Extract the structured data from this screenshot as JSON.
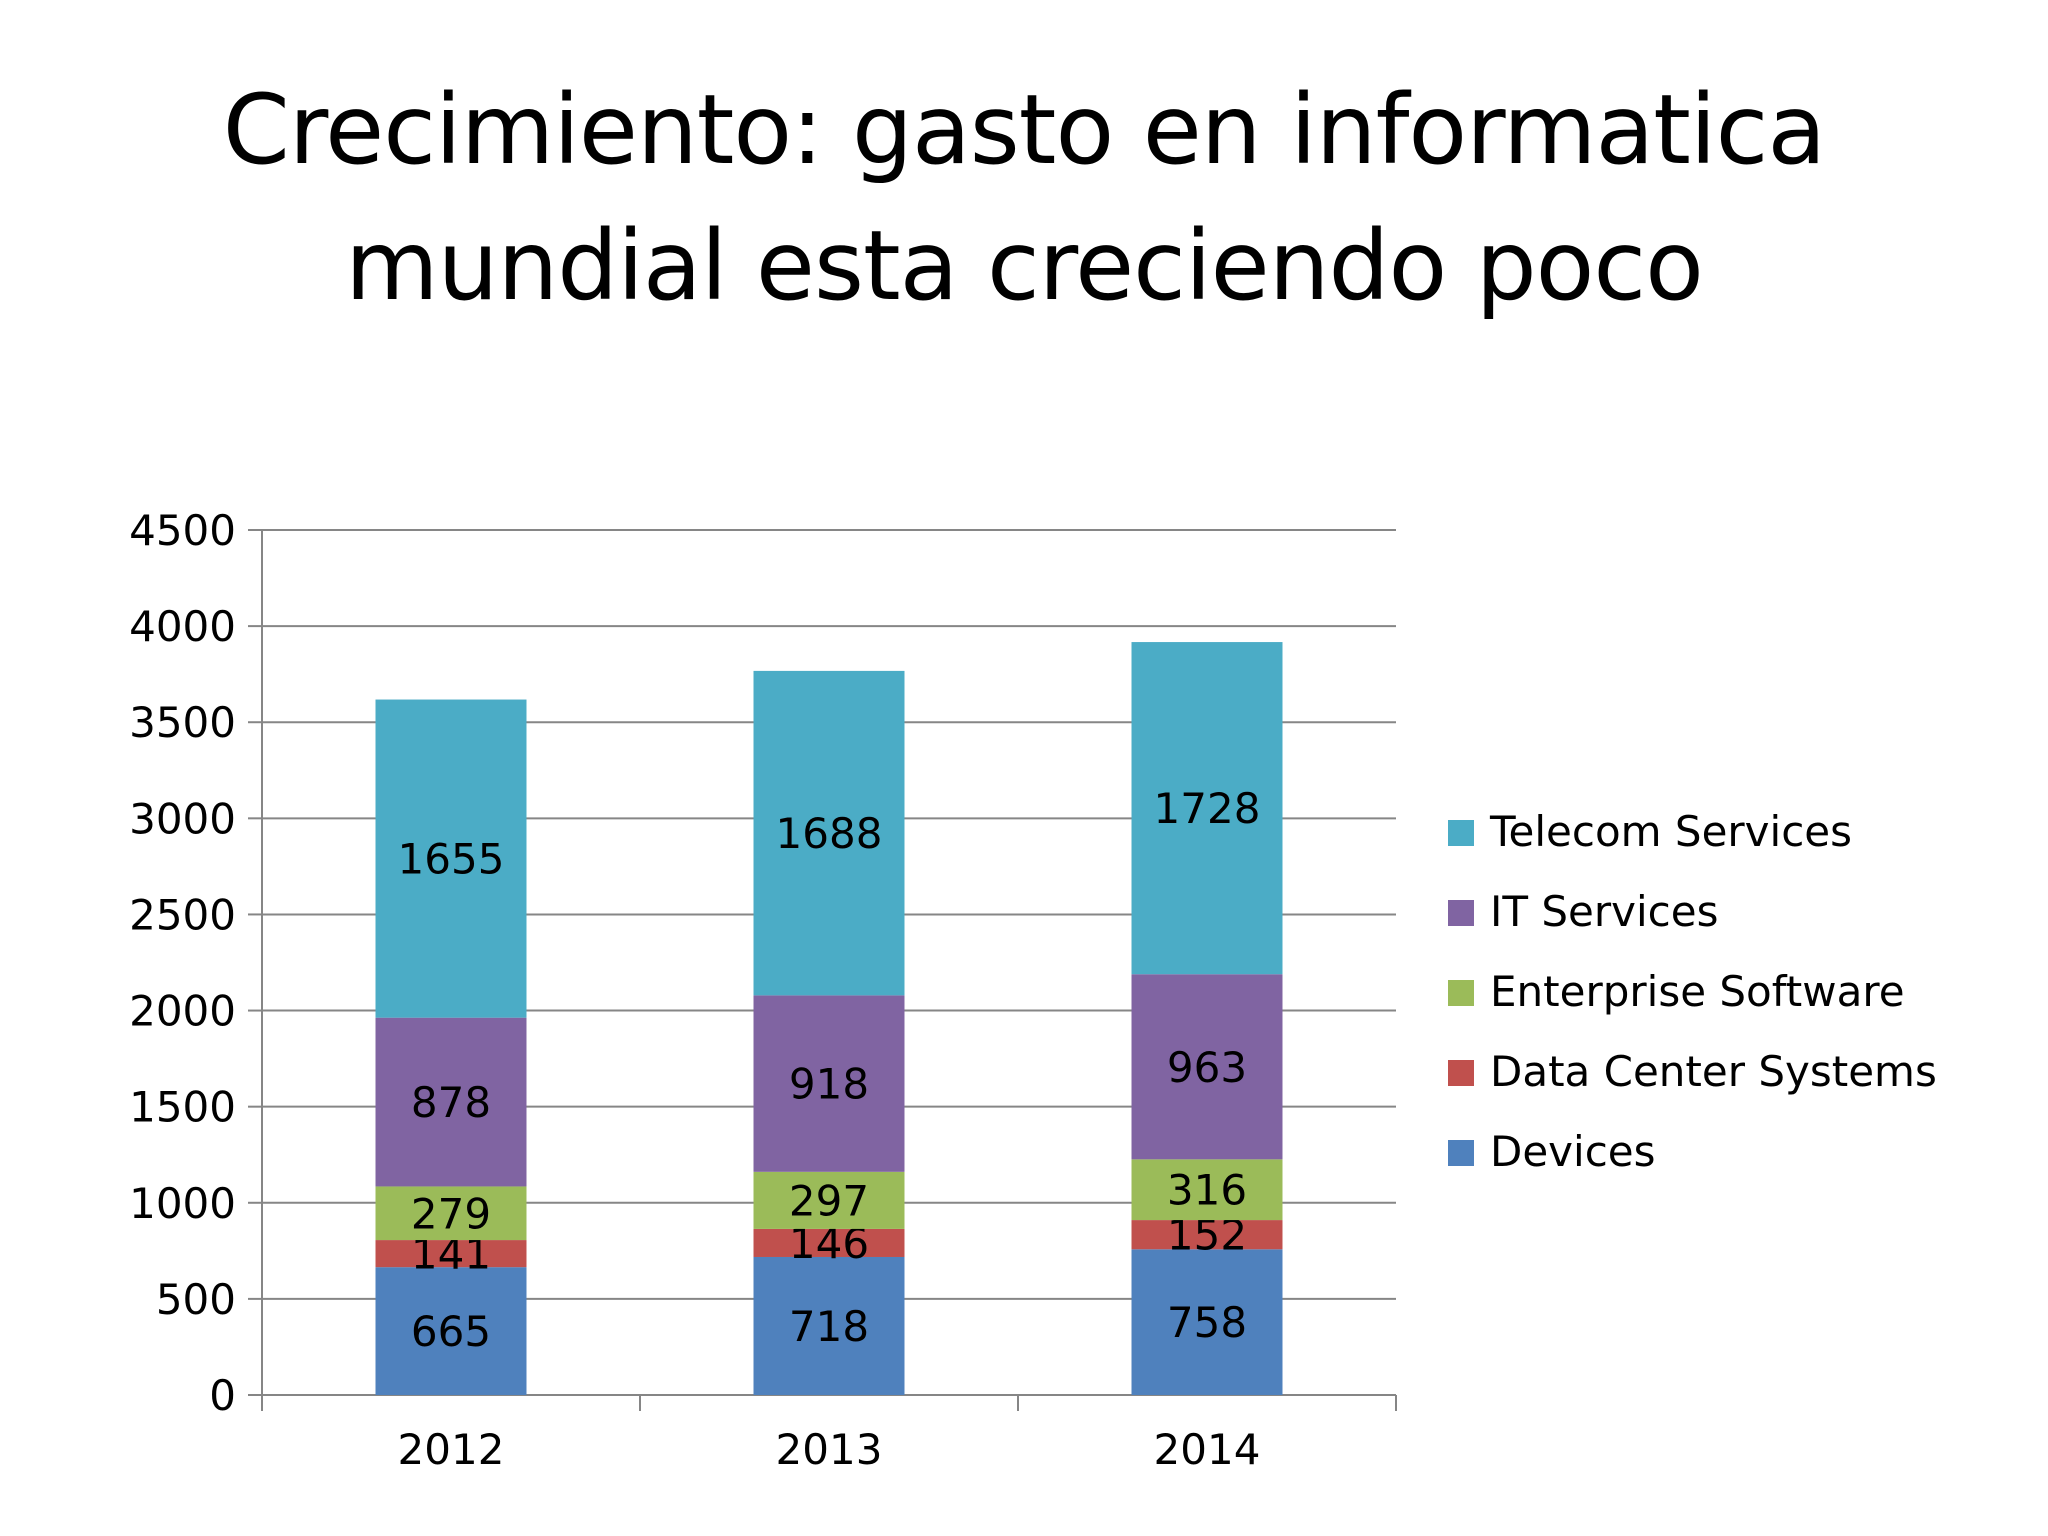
{
  "slide": {
    "title_line1": "Crecimiento: gasto en informatica",
    "title_line2": "mundial esta creciendo poco"
  },
  "chart_data": {
    "type": "bar",
    "stacked": true,
    "title": "Crecimiento: gasto en informatica mundial esta creciendo poco",
    "xlabel": "",
    "ylabel": "",
    "categories": [
      "2012",
      "2013",
      "2014"
    ],
    "ylim": [
      0,
      4500
    ],
    "yticks": [
      0,
      500,
      1000,
      1500,
      2000,
      2500,
      3000,
      3500,
      4000,
      4500
    ],
    "grid": true,
    "legend_position": "right",
    "series": [
      {
        "name": "Devices",
        "values": [
          665,
          718,
          758
        ],
        "color": "#4F81BD"
      },
      {
        "name": "Data Center Systems",
        "values": [
          141,
          146,
          152
        ],
        "color": "#C0504D"
      },
      {
        "name": "Enterprise Software",
        "values": [
          279,
          297,
          316
        ],
        "color": "#9BBB59"
      },
      {
        "name": "IT Services",
        "values": [
          878,
          918,
          963
        ],
        "color": "#8064A2"
      },
      {
        "name": "Telecom Services",
        "values": [
          1655,
          1688,
          1728
        ],
        "color": "#4BACC6"
      }
    ],
    "colors": {
      "gridline": "#868686",
      "axis": "#868686"
    }
  }
}
